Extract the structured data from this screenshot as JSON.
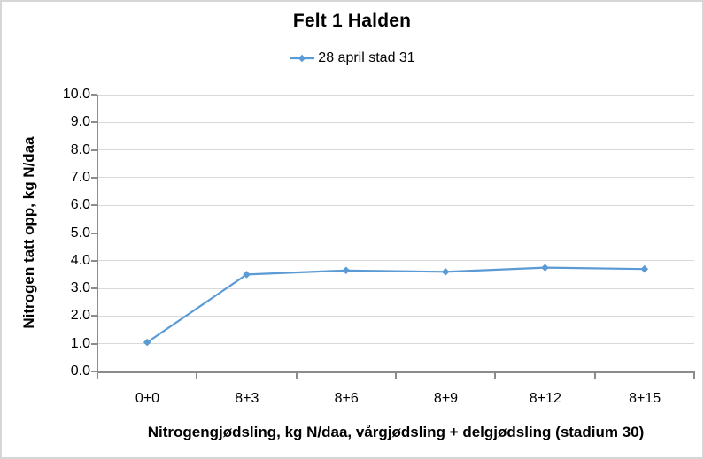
{
  "chart": {
    "colors": {
      "series": "#5B9BD5",
      "gridline": "#D9D9D9",
      "axis_line": "#8C8C8C",
      "frame_border": "#D6D6D6",
      "text": "#000000"
    }
  },
  "chart_data": {
    "type": "line",
    "title": "Felt 1 Halden",
    "categories": [
      "0+0",
      "8+3",
      "8+6",
      "8+9",
      "8+12",
      "8+15"
    ],
    "series": [
      {
        "name": "28 april stad 31",
        "values": [
          1.05,
          3.5,
          3.65,
          3.6,
          3.75,
          3.7
        ]
      }
    ],
    "xlabel": "Nitrogengjødsling, kg N/daa, vårgjødsling + delgjødsling (stadium 30)",
    "ylabel": "Nitrogen tatt opp, kg N/daa",
    "ylim": [
      0,
      10
    ],
    "ytick_step": 1,
    "ytick_decimals": 1,
    "grid": true,
    "legend_position": "top",
    "marker": "diamond"
  }
}
